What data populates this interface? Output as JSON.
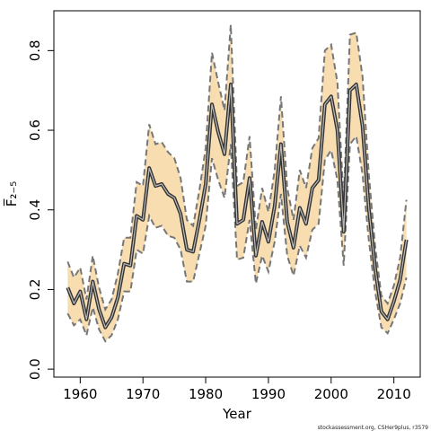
{
  "chart_data": {
    "type": "area",
    "xlabel": "Year",
    "ylabel": "F̅₂₋₅",
    "xlim": [
      1955.8,
      2014.2
    ],
    "ylim": [
      -0.02,
      0.9
    ],
    "xticks": [
      1960,
      1970,
      1980,
      1990,
      2000,
      2010
    ],
    "yticks": [
      0.0,
      0.2,
      0.4,
      0.6,
      0.8
    ],
    "ytick_labels": [
      "0.0",
      "0.2",
      "0.4",
      "0.6",
      "0.8"
    ],
    "grid": false,
    "legend": "none",
    "x": [
      1958,
      1959,
      1960,
      1961,
      1962,
      1963,
      1964,
      1965,
      1966,
      1967,
      1968,
      1969,
      1970,
      1971,
      1972,
      1973,
      1974,
      1975,
      1976,
      1977,
      1978,
      1979,
      1980,
      1981,
      1982,
      1983,
      1984,
      1985,
      1986,
      1987,
      1988,
      1989,
      1990,
      1991,
      1992,
      1993,
      1994,
      1995,
      1996,
      1997,
      1998,
      1999,
      2000,
      2001,
      2002,
      2003,
      2004,
      2005,
      2006,
      2007,
      2008,
      2009,
      2010,
      2011,
      2012
    ],
    "series": [
      {
        "role": "estimate",
        "values": [
          0.205,
          0.165,
          0.195,
          0.125,
          0.22,
          0.15,
          0.105,
          0.13,
          0.18,
          0.265,
          0.26,
          0.385,
          0.375,
          0.505,
          0.46,
          0.465,
          0.44,
          0.43,
          0.39,
          0.3,
          0.295,
          0.375,
          0.465,
          0.665,
          0.595,
          0.54,
          0.715,
          0.365,
          0.375,
          0.48,
          0.285,
          0.37,
          0.32,
          0.41,
          0.565,
          0.37,
          0.305,
          0.405,
          0.365,
          0.455,
          0.475,
          0.665,
          0.685,
          0.6,
          0.345,
          0.7,
          0.715,
          0.61,
          0.405,
          0.255,
          0.145,
          0.125,
          0.17,
          0.225,
          0.325
        ]
      },
      {
        "role": "upper",
        "values": [
          0.27,
          0.23,
          0.255,
          0.175,
          0.285,
          0.205,
          0.15,
          0.175,
          0.24,
          0.33,
          0.33,
          0.47,
          0.46,
          0.615,
          0.565,
          0.57,
          0.545,
          0.53,
          0.48,
          0.375,
          0.36,
          0.45,
          0.555,
          0.795,
          0.72,
          0.65,
          0.865,
          0.46,
          0.47,
          0.585,
          0.35,
          0.455,
          0.395,
          0.5,
          0.685,
          0.455,
          0.375,
          0.5,
          0.455,
          0.555,
          0.58,
          0.8,
          0.815,
          0.72,
          0.42,
          0.84,
          0.845,
          0.735,
          0.49,
          0.31,
          0.185,
          0.165,
          0.21,
          0.28,
          0.425
        ]
      },
      {
        "role": "lower",
        "values": [
          0.14,
          0.11,
          0.125,
          0.085,
          0.155,
          0.1,
          0.07,
          0.085,
          0.125,
          0.195,
          0.195,
          0.3,
          0.29,
          0.385,
          0.355,
          0.36,
          0.335,
          0.33,
          0.3,
          0.22,
          0.22,
          0.29,
          0.36,
          0.53,
          0.475,
          0.43,
          0.565,
          0.275,
          0.28,
          0.375,
          0.215,
          0.285,
          0.245,
          0.32,
          0.44,
          0.285,
          0.235,
          0.31,
          0.28,
          0.35,
          0.365,
          0.525,
          0.55,
          0.475,
          0.26,
          0.565,
          0.585,
          0.49,
          0.325,
          0.195,
          0.105,
          0.09,
          0.125,
          0.165,
          0.23
        ]
      }
    ],
    "colors": {
      "band_fill": "#f7ddb0",
      "band_edge": "#777777",
      "estimate_outer": "#333333",
      "estimate_inner": "#bbbbbb",
      "frame": "#000000"
    }
  },
  "credit": "stockassessment.org, CSHer9plus, r3579"
}
